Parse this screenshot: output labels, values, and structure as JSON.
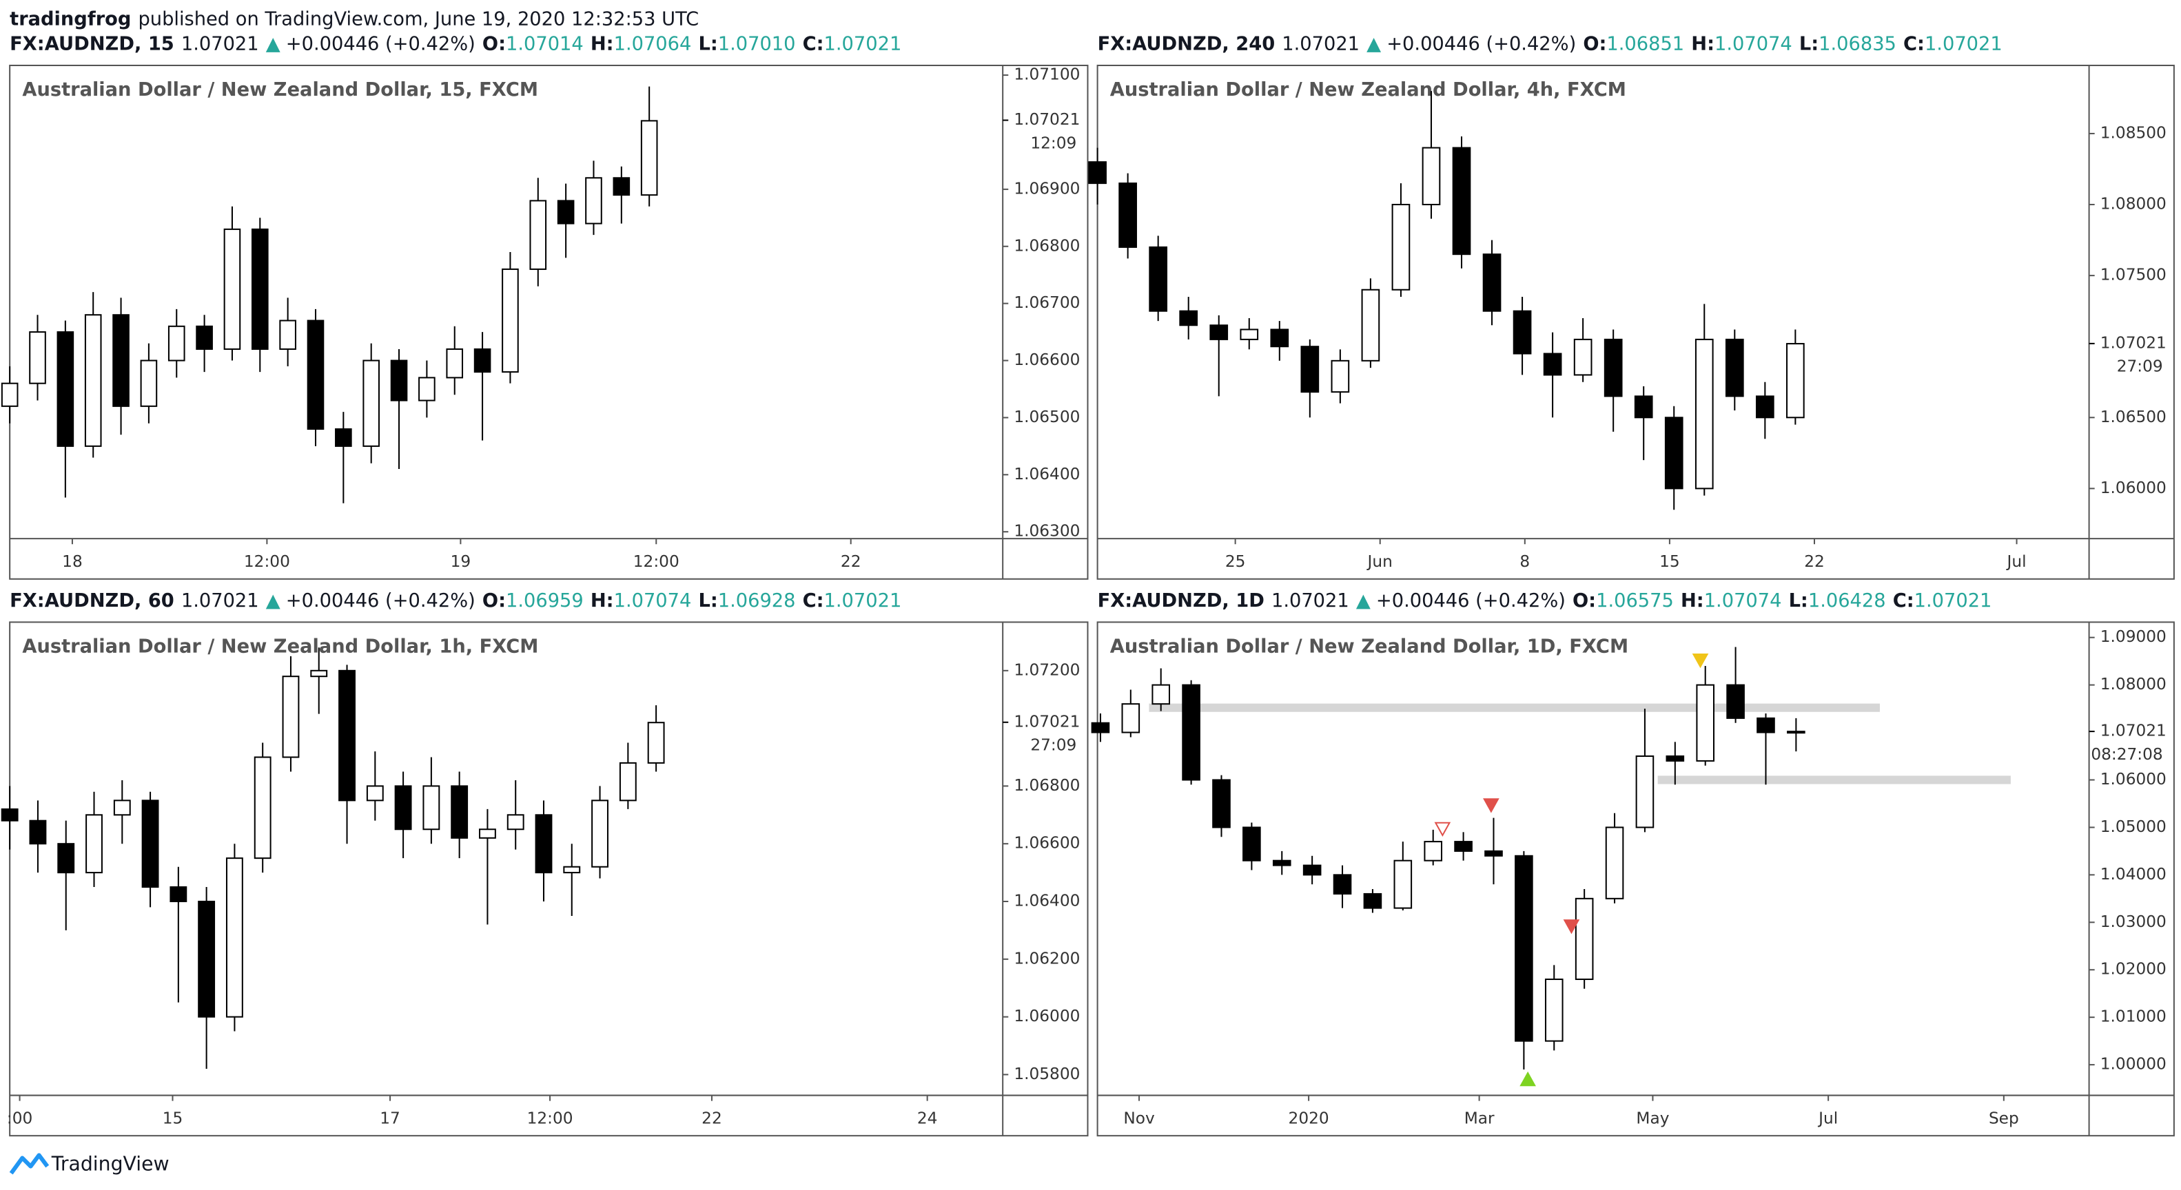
{
  "publisher": "tradingfrog",
  "published": "published on TradingView.com, June 19, 2020 12:32:53 UTC",
  "brand": "TradingView",
  "chart_data": [
    {
      "type": "candlestick",
      "header": {
        "symbol": "FX:AUDNZD, 15",
        "price": "1.07021",
        "arrow": "▲",
        "change": "+0.00446 (+0.42%)",
        "ohlc": [
          {
            "key": "O:",
            "value": "1.07014"
          },
          {
            "key": "H:",
            "value": "1.07064"
          },
          {
            "key": "L:",
            "value": "1.07010"
          },
          {
            "key": "C:",
            "value": "1.07021"
          }
        ]
      },
      "title": "Australian Dollar / New Zealand Dollar, 15, FXCM",
      "up_color": "#ffffff",
      "down_color": "#000000",
      "header_color": "#26a69a",
      "x": [
        0,
        2.8,
        5.6,
        8.4,
        11.2,
        14,
        16.8,
        19.6,
        22.4,
        25.2,
        28,
        30.8,
        33.6,
        36.4,
        39.2,
        42,
        44.8,
        47.6,
        50.4,
        53.2,
        56,
        58.8,
        61.6,
        64.4
      ],
      "open": [
        1.0652,
        1.0656,
        1.0665,
        1.0645,
        1.0668,
        1.0652,
        1.066,
        1.0666,
        1.0662,
        1.0683,
        1.0662,
        1.0667,
        1.0648,
        1.0645,
        1.066,
        1.0653,
        1.0657,
        1.0662,
        1.0658,
        1.0676,
        1.0688,
        1.0684,
        1.0692,
        1.0689
      ],
      "high": [
        1.0659,
        1.0668,
        1.0667,
        1.0672,
        1.0671,
        1.0663,
        1.0669,
        1.0668,
        1.0687,
        1.0685,
        1.0671,
        1.0669,
        1.0651,
        1.0663,
        1.0662,
        1.066,
        1.0666,
        1.0665,
        1.0679,
        1.0692,
        1.0691,
        1.0695,
        1.0694,
        1.0708
      ],
      "low": [
        1.0649,
        1.0653,
        1.0636,
        1.0643,
        1.0647,
        1.0649,
        1.0657,
        1.0658,
        1.066,
        1.0658,
        1.0659,
        1.0645,
        1.0635,
        1.0642,
        1.0641,
        1.065,
        1.0654,
        1.0646,
        1.0656,
        1.0673,
        1.0678,
        1.0682,
        1.0684,
        1.0687
      ],
      "close": [
        1.0656,
        1.0665,
        1.0645,
        1.0668,
        1.0652,
        1.066,
        1.0666,
        1.0662,
        1.0683,
        1.0662,
        1.0667,
        1.0648,
        1.0645,
        1.066,
        1.0653,
        1.0657,
        1.0662,
        1.0658,
        1.0676,
        1.0688,
        1.0684,
        1.0692,
        1.0689,
        1.0702
      ],
      "xlim": [
        0,
        100
      ],
      "ylim": [
        1.06288,
        1.07117
      ],
      "xticks": [
        {
          "value": 6.3,
          "label": "18"
        },
        {
          "value": 25.9,
          "label": "12:00"
        },
        {
          "value": 45.4,
          "label": "19"
        },
        {
          "value": 65.1,
          "label": "12:00"
        },
        {
          "value": 84.7,
          "label": "22"
        }
      ],
      "yticks": [
        {
          "value": 1.071,
          "label": "1.07100"
        },
        {
          "value": 1.069,
          "label": "1.06900"
        },
        {
          "value": 1.068,
          "label": "1.06800"
        },
        {
          "value": 1.067,
          "label": "1.06700"
        },
        {
          "value": 1.066,
          "label": "1.06600"
        },
        {
          "value": 1.065,
          "label": "1.06500"
        },
        {
          "value": 1.064,
          "label": "1.06400"
        },
        {
          "value": 1.063,
          "label": "1.06300"
        }
      ],
      "last_price": 1.07021,
      "countdown": "12:09"
    },
    {
      "type": "candlestick",
      "header": {
        "symbol": "FX:AUDNZD, 240",
        "price": "1.07021",
        "arrow": "▲",
        "change": "+0.00446 (+0.42%)",
        "ohlc": [
          {
            "key": "O:",
            "value": "1.06851"
          },
          {
            "key": "H:",
            "value": "1.07074"
          },
          {
            "key": "L:",
            "value": "1.06835"
          },
          {
            "key": "C:",
            "value": "1.07021"
          }
        ]
      },
      "title": "Australian Dollar / New Zealand Dollar, 4h, FXCM",
      "up_color": "#ffffff",
      "down_color": "#000000",
      "header_color": "#26a69a",
      "x": [
        0,
        3.06,
        6.12,
        9.18,
        12.24,
        15.3,
        18.36,
        21.42,
        24.48,
        27.54,
        30.6,
        33.66,
        36.72,
        39.78,
        42.84,
        45.9,
        48.96,
        52.02,
        55.08,
        58.14,
        61.2,
        64.26,
        67.32,
        70.38
      ],
      "open": [
        1.083,
        1.0815,
        1.077,
        1.0725,
        1.0715,
        1.0705,
        1.0712,
        1.07,
        1.0668,
        1.069,
        1.074,
        1.08,
        1.084,
        1.0765,
        1.0725,
        1.0695,
        1.068,
        1.0705,
        1.0665,
        1.065,
        1.06,
        1.0705,
        1.0665,
        1.065
      ],
      "high": [
        1.084,
        1.0822,
        1.0778,
        1.0735,
        1.0722,
        1.072,
        1.0718,
        1.0705,
        1.0698,
        1.0748,
        1.0815,
        1.088,
        1.0848,
        1.0775,
        1.0735,
        1.071,
        1.072,
        1.0712,
        1.0672,
        1.0658,
        1.073,
        1.0712,
        1.0675,
        1.0712
      ],
      "low": [
        1.08,
        1.0762,
        1.0718,
        1.0705,
        1.0665,
        1.0698,
        1.069,
        1.065,
        1.066,
        1.0685,
        1.0735,
        1.079,
        1.0755,
        1.0715,
        1.068,
        1.065,
        1.0675,
        1.064,
        1.062,
        1.0585,
        1.0595,
        1.0655,
        1.0635,
        1.0645
      ],
      "close": [
        1.0815,
        1.077,
        1.0725,
        1.0715,
        1.0705,
        1.0712,
        1.07,
        1.0668,
        1.069,
        1.074,
        1.08,
        1.084,
        1.0765,
        1.0725,
        1.0695,
        1.068,
        1.0705,
        1.0665,
        1.065,
        1.06,
        1.0705,
        1.0665,
        1.065,
        1.0702
      ],
      "xlim": [
        0,
        100
      ],
      "ylim": [
        1.05647,
        1.0898
      ],
      "xticks": [
        {
          "value": 13.9,
          "label": "25"
        },
        {
          "value": 28.5,
          "label": "Jun"
        },
        {
          "value": 43.1,
          "label": "8"
        },
        {
          "value": 57.7,
          "label": "15"
        },
        {
          "value": 72.3,
          "label": "22"
        },
        {
          "value": 92.7,
          "label": "Jul"
        }
      ],
      "yticks": [
        {
          "value": 1.085,
          "label": "1.08500"
        },
        {
          "value": 1.08,
          "label": "1.08000"
        },
        {
          "value": 1.075,
          "label": "1.07500"
        },
        {
          "value": 1.065,
          "label": "1.06500"
        },
        {
          "value": 1.06,
          "label": "1.06000"
        }
      ],
      "last_price": 1.07021,
      "countdown": "27:09"
    },
    {
      "type": "candlestick",
      "header": {
        "symbol": "FX:AUDNZD, 60",
        "price": "1.07021",
        "arrow": "▲",
        "change": "+0.00446 (+0.42%)",
        "ohlc": [
          {
            "key": "O:",
            "value": "1.06959"
          },
          {
            "key": "H:",
            "value": "1.07074"
          },
          {
            "key": "L:",
            "value": "1.06928"
          },
          {
            "key": "C:",
            "value": "1.07021"
          }
        ]
      },
      "title": "Australian Dollar / New Zealand Dollar, 1h, FXCM",
      "up_color": "#ffffff",
      "down_color": "#000000",
      "header_color": "#26a69a",
      "x": [
        0,
        2.83,
        5.66,
        8.49,
        11.32,
        14.15,
        16.98,
        19.81,
        22.64,
        25.47,
        28.3,
        31.13,
        33.96,
        36.79,
        39.62,
        42.45,
        45.28,
        48.11,
        50.94,
        53.77,
        56.6,
        59.43,
        62.26,
        65.09
      ],
      "open": [
        1.0672,
        1.0668,
        1.066,
        1.065,
        1.067,
        1.0675,
        1.0645,
        1.064,
        1.06,
        1.0655,
        1.069,
        1.0718,
        1.072,
        1.0675,
        1.068,
        1.0665,
        1.068,
        1.0662,
        1.0665,
        1.067,
        1.065,
        1.0652,
        1.0675,
        1.0688
      ],
      "high": [
        1.068,
        1.0675,
        1.0668,
        1.0678,
        1.0682,
        1.0678,
        1.0652,
        1.0645,
        1.066,
        1.0695,
        1.0725,
        1.0728,
        1.0722,
        1.0692,
        1.0685,
        1.069,
        1.0685,
        1.0672,
        1.0682,
        1.0675,
        1.066,
        1.068,
        1.0695,
        1.0708
      ],
      "low": [
        1.0658,
        1.065,
        1.063,
        1.0645,
        1.066,
        1.0638,
        1.0605,
        1.0582,
        1.0595,
        1.065,
        1.0685,
        1.0705,
        1.066,
        1.0668,
        1.0655,
        1.066,
        1.0655,
        1.0632,
        1.0658,
        1.064,
        1.0635,
        1.0648,
        1.0672,
        1.0685
      ],
      "close": [
        1.0668,
        1.066,
        1.065,
        1.067,
        1.0675,
        1.0645,
        1.064,
        1.06,
        1.0655,
        1.069,
        1.0718,
        1.072,
        1.0675,
        1.068,
        1.0665,
        1.068,
        1.0662,
        1.0665,
        1.067,
        1.065,
        1.0652,
        1.0675,
        1.0688,
        1.0702
      ],
      "xlim": [
        0,
        100
      ],
      "ylim": [
        1.05728,
        1.07368
      ],
      "xticks": [
        {
          "value": 1.0,
          "label": ":00"
        },
        {
          "value": 16.4,
          "label": "15"
        },
        {
          "value": 38.3,
          "label": "17"
        },
        {
          "value": 54.4,
          "label": "12:00"
        },
        {
          "value": 70.7,
          "label": "22"
        },
        {
          "value": 92.4,
          "label": "24"
        }
      ],
      "yticks": [
        {
          "value": 1.072,
          "label": "1.07200"
        },
        {
          "value": 1.068,
          "label": "1.06800"
        },
        {
          "value": 1.066,
          "label": "1.06600"
        },
        {
          "value": 1.064,
          "label": "1.06400"
        },
        {
          "value": 1.062,
          "label": "1.06200"
        },
        {
          "value": 1.06,
          "label": "1.06000"
        },
        {
          "value": 1.058,
          "label": "1.05800"
        }
      ],
      "last_price": 1.07021,
      "countdown": "27:09"
    },
    {
      "type": "candlestick",
      "header": {
        "symbol": "FX:AUDNZD, 1D",
        "price": "1.07021",
        "arrow": "▲",
        "change": "+0.00446 (+0.42%)",
        "ohlc": [
          {
            "key": "O:",
            "value": "1.06575"
          },
          {
            "key": "H:",
            "value": "1.07074"
          },
          {
            "key": "L:",
            "value": "1.06428"
          },
          {
            "key": "C:",
            "value": "1.07021"
          }
        ]
      },
      "title": "Australian Dollar / New Zealand Dollar, 1D, FXCM",
      "up_color": "#ffffff",
      "down_color": "#000000",
      "header_color": "#26a69a",
      "x": [
        0.3,
        3.35,
        6.4,
        9.45,
        12.5,
        15.55,
        18.6,
        21.65,
        24.7,
        27.75,
        30.8,
        33.85,
        36.9,
        39.95,
        43,
        46.05,
        49.1,
        52.15,
        55.2,
        58.25,
        61.3,
        64.35,
        67.4,
        70.45
      ],
      "open": [
        1.072,
        1.07,
        1.076,
        1.08,
        1.06,
        1.05,
        1.043,
        1.042,
        1.04,
        1.036,
        1.033,
        1.043,
        1.047,
        1.045,
        1.044,
        1.005,
        1.018,
        1.035,
        1.05,
        1.065,
        1.064,
        1.08,
        1.073,
        1.07
      ],
      "high": [
        1.074,
        1.079,
        1.0835,
        1.081,
        1.061,
        1.051,
        1.045,
        1.044,
        1.042,
        1.037,
        1.047,
        1.0495,
        1.049,
        1.052,
        1.045,
        1.021,
        1.037,
        1.053,
        1.075,
        1.068,
        1.084,
        1.088,
        1.074,
        1.073
      ],
      "low": [
        1.068,
        1.069,
        1.0745,
        1.059,
        1.048,
        1.041,
        1.04,
        1.038,
        1.033,
        1.032,
        1.0325,
        1.042,
        1.043,
        1.038,
        0.999,
        1.003,
        1.016,
        1.034,
        1.049,
        1.059,
        1.063,
        1.072,
        1.059,
        1.066
      ],
      "close": [
        1.07,
        1.076,
        1.08,
        1.06,
        1.05,
        1.043,
        1.042,
        1.04,
        1.036,
        1.033,
        1.043,
        1.047,
        1.045,
        1.044,
        1.005,
        1.018,
        1.035,
        1.05,
        1.065,
        1.064,
        1.08,
        1.073,
        1.07,
        1.0702
      ],
      "xlim": [
        0,
        100
      ],
      "ylim": [
        0.99355,
        1.09323
      ],
      "xticks": [
        {
          "value": 4.2,
          "label": "Nov"
        },
        {
          "value": 21.3,
          "label": "2020"
        },
        {
          "value": 38.5,
          "label": "Mar"
        },
        {
          "value": 56.0,
          "label": "May"
        },
        {
          "value": 73.7,
          "label": "Jul"
        },
        {
          "value": 91.4,
          "label": "Sep"
        }
      ],
      "yticks": [
        {
          "value": 1.09,
          "label": "1.09000"
        },
        {
          "value": 1.08,
          "label": "1.08000"
        },
        {
          "value": 1.06,
          "label": "1.06000"
        },
        {
          "value": 1.05,
          "label": "1.05000"
        },
        {
          "value": 1.04,
          "label": "1.04000"
        },
        {
          "value": 1.03,
          "label": "1.03000"
        },
        {
          "value": 1.02,
          "label": "1.02000"
        },
        {
          "value": 1.01,
          "label": "1.01000"
        },
        {
          "value": 1,
          "label": "1.00000"
        }
      ],
      "last_price": 1.07021,
      "countdown": "08:27:08",
      "zones": [
        {
          "x": [
            5.2,
            78.9
          ],
          "y": 1.0752,
          "color": "#d6d6d6"
        },
        {
          "x": [
            56.5,
            92.1
          ],
          "y": 1.06,
          "color": "#d6d6d6"
        }
      ],
      "markers": [
        {
          "x": 34.8,
          "y": 1.0495,
          "dir": "down",
          "color": "#e0504a",
          "hollow": true
        },
        {
          "x": 39.7,
          "y": 1.0545,
          "dir": "down",
          "color": "#e0504a"
        },
        {
          "x": 47.8,
          "y": 1.029,
          "dir": "down",
          "color": "#e0504a"
        },
        {
          "x": 60.8,
          "y": 1.085,
          "dir": "down",
          "color": "#f0c419"
        },
        {
          "x": 43.4,
          "y": 0.9971,
          "dir": "up",
          "color": "#7ed321"
        }
      ]
    }
  ]
}
